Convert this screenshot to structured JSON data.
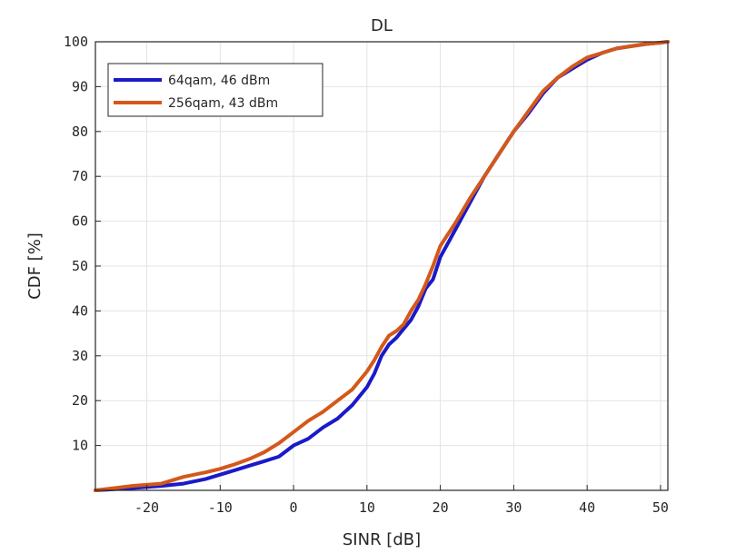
{
  "chart_data": {
    "type": "line",
    "title": "DL",
    "xlabel": "SINR [dB]",
    "ylabel": "CDF [%]",
    "xlim": [
      -27,
      51
    ],
    "ylim": [
      0,
      100
    ],
    "xticks": [
      -20,
      -10,
      0,
      10,
      20,
      30,
      40,
      50
    ],
    "yticks": [
      10,
      20,
      30,
      40,
      50,
      60,
      70,
      80,
      90,
      100
    ],
    "grid": true,
    "legend_position": "top-left",
    "series": [
      {
        "name": "64qam, 46 dBm",
        "color": "#1a1ac8",
        "x": [
          -27,
          -22,
          -18,
          -15,
          -12,
          -10,
          -8,
          -6,
          -4,
          -2,
          0,
          2,
          4,
          6,
          8,
          10,
          11,
          12,
          13,
          14,
          15,
          16,
          17,
          18,
          19,
          20,
          21,
          22,
          24,
          26,
          28,
          30,
          32,
          34,
          36,
          38,
          40,
          42,
          44,
          46,
          48,
          50,
          51
        ],
        "y": [
          0,
          0.5,
          1,
          1.5,
          2.5,
          3.5,
          4.5,
          5.5,
          6.5,
          7.5,
          10,
          11.5,
          14,
          16,
          19,
          23,
          26,
          30,
          32.5,
          34,
          36,
          38,
          41,
          45,
          47,
          52,
          55,
          58,
          64,
          70,
          75,
          80,
          84,
          88.5,
          92,
          94,
          96,
          97.5,
          98.5,
          99,
          99.5,
          99.8,
          100
        ]
      },
      {
        "name": "256qam, 43 dBm",
        "color": "#d4581a",
        "x": [
          -27,
          -22,
          -18,
          -15,
          -12,
          -10,
          -8,
          -6,
          -4,
          -2,
          0,
          2,
          4,
          6,
          8,
          10,
          11,
          12,
          13,
          14,
          15,
          16,
          17,
          18,
          19,
          20,
          21,
          22,
          24,
          26,
          28,
          30,
          32,
          34,
          36,
          38,
          40,
          42,
          44,
          46,
          48,
          50,
          51
        ],
        "y": [
          0,
          1,
          1.5,
          3,
          4,
          4.8,
          5.8,
          7,
          8.5,
          10.5,
          13,
          15.5,
          17.5,
          20,
          22.5,
          26.5,
          29,
          32,
          34.5,
          35.5,
          37,
          40,
          42.5,
          46,
          50,
          54.5,
          57,
          59.5,
          65,
          70,
          75,
          80,
          84.5,
          89,
          92,
          94.5,
          96.5,
          97.5,
          98.5,
          99,
          99.5,
          99.8,
          100
        ]
      }
    ]
  }
}
